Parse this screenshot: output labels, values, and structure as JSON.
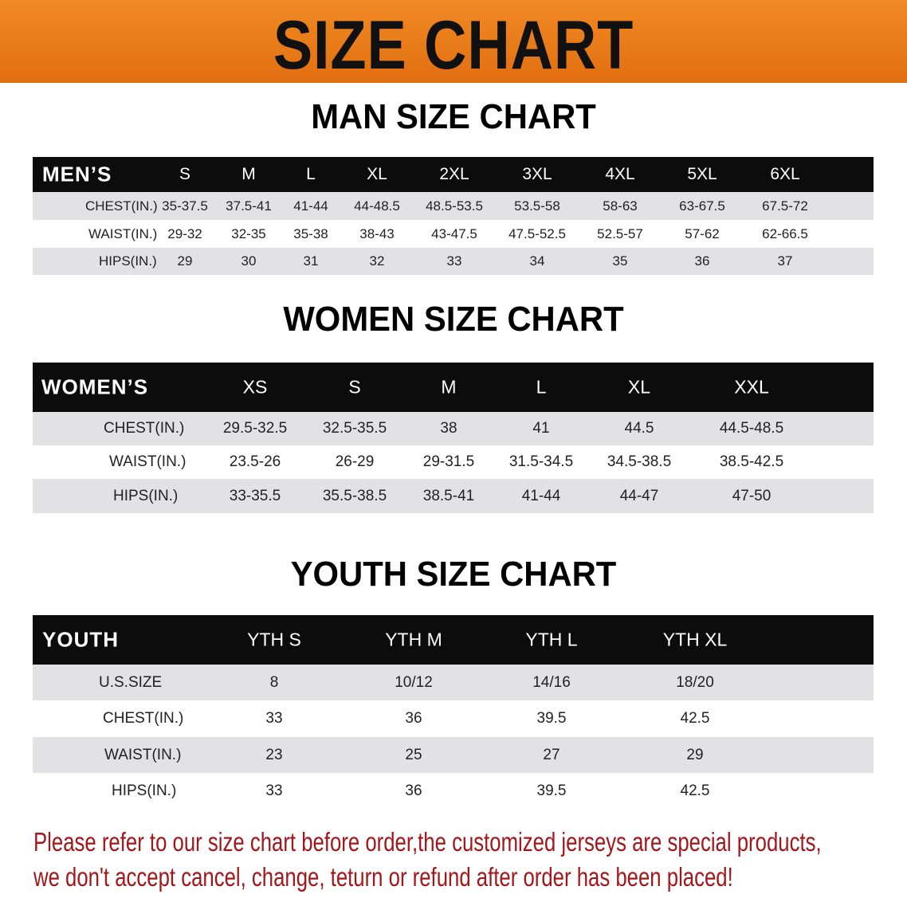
{
  "banner": {
    "title": "SIZE CHART",
    "color": "#e97a18"
  },
  "men": {
    "title": "MAN SIZE CHART",
    "header": [
      "MEN’S",
      "S",
      "M",
      "L",
      "XL",
      "2XL",
      "3XL",
      "4XL",
      "5XL",
      "6XL"
    ],
    "rows": [
      [
        "CHEST(IN.)",
        "35-37.5",
        "37.5-41",
        "41-44",
        "44-48.5",
        "48.5-53.5",
        "53.5-58",
        "58-63",
        "63-67.5",
        "67.5-72"
      ],
      [
        "WAIST(IN.)",
        "29-32",
        "32-35",
        "35-38",
        "38-43",
        "43-47.5",
        "47.5-52.5",
        "52.5-57",
        "57-62",
        "62-66.5"
      ],
      [
        "HIPS(IN.)",
        "29",
        "30",
        "31",
        "32",
        "33",
        "34",
        "35",
        "36",
        "37"
      ]
    ]
  },
  "women": {
    "title": "WOMEN SIZE CHART",
    "header": [
      "WOMEN’S",
      "XS",
      "S",
      "M",
      "L",
      "XL",
      "XXL"
    ],
    "rows": [
      [
        "CHEST(IN.)",
        "29.5-32.5",
        "32.5-35.5",
        "38",
        "41",
        "44.5",
        "44.5-48.5"
      ],
      [
        "WAIST(IN.)",
        "23.5-26",
        "26-29",
        "29-31.5",
        "31.5-34.5",
        "34.5-38.5",
        "38.5-42.5"
      ],
      [
        "HIPS(IN.)",
        "33-35.5",
        "35.5-38.5",
        "38.5-41",
        "41-44",
        "44-47",
        "47-50"
      ]
    ]
  },
  "youth": {
    "title": "YOUTH SIZE CHART",
    "header": [
      "YOUTH",
      "YTH S",
      "YTH M",
      "YTH L",
      "YTH XL"
    ],
    "rows": [
      [
        "U.S.SIZE",
        "8",
        "10/12",
        "14/16",
        "18/20"
      ],
      [
        "CHEST(IN.)",
        "33",
        "36",
        "39.5",
        "42.5"
      ],
      [
        "WAIST(IN.)",
        "23",
        "25",
        "27",
        "29"
      ],
      [
        "HIPS(IN.)",
        "33",
        "36",
        "39.5",
        "42.5"
      ]
    ]
  },
  "footer": {
    "line1": "Please refer to our size chart before order,the customized jerseys are special products,",
    "line2": "we don't accept cancel, change, teturn or refund after order has been placed!",
    "color": "#a3171b"
  }
}
